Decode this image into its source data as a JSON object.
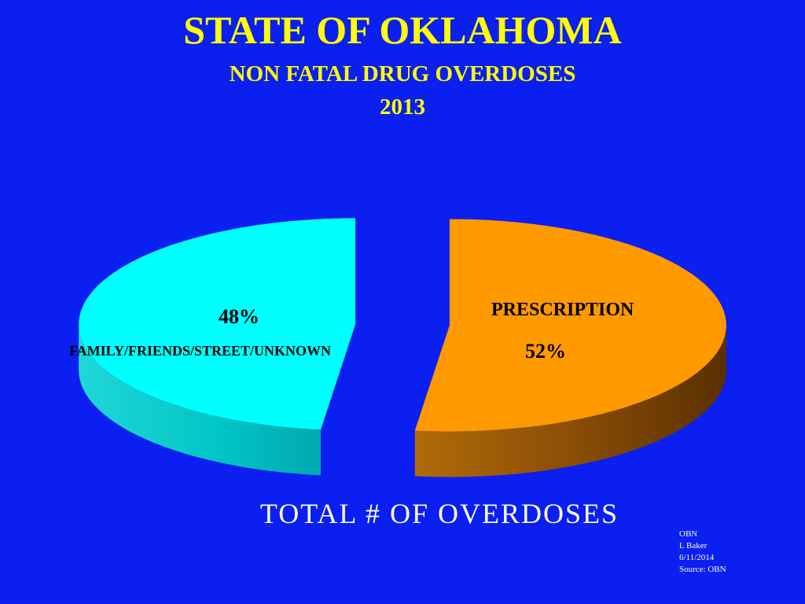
{
  "header": {
    "title": "STATE OF OKLAHOMA",
    "subtitle": "NON FATAL DRUG OVERDOSES",
    "year": "2013"
  },
  "chart_data": {
    "type": "pie",
    "three_d": true,
    "exploded": true,
    "title": "STATE OF OKLAHOMA",
    "subtitle": "NON FATAL DRUG OVERDOSES 2013",
    "caption": "TOTAL # OF OVERDOSES",
    "slices": [
      {
        "label": "FAMILY/FRIENDS/STREET/UNKNOWN",
        "value": 48,
        "display": "48%",
        "color": "#00ffff"
      },
      {
        "label": "PRESCRIPTION",
        "value": 52,
        "display": "52%",
        "color": "#ff9900"
      }
    ]
  },
  "footer": {
    "lines": [
      "OBN",
      "L Baker",
      "6/11/2014",
      "Source: OBN"
    ]
  },
  "colors": {
    "background": "#0a1ff0",
    "title": "#ffff00",
    "caption": "#ffffff"
  }
}
